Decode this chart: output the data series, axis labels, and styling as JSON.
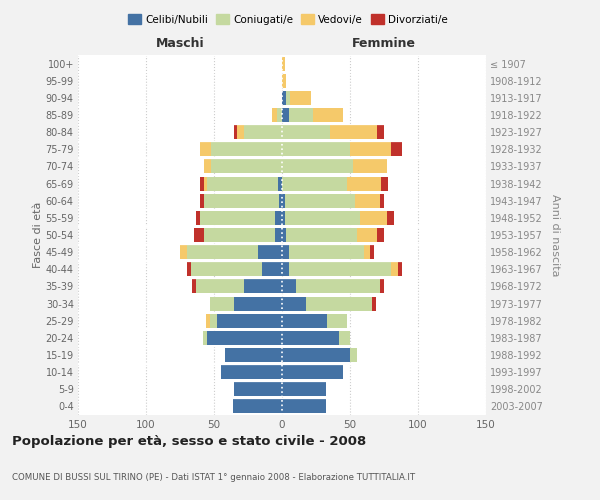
{
  "age_groups": [
    "0-4",
    "5-9",
    "10-14",
    "15-19",
    "20-24",
    "25-29",
    "30-34",
    "35-39",
    "40-44",
    "45-49",
    "50-54",
    "55-59",
    "60-64",
    "65-69",
    "70-74",
    "75-79",
    "80-84",
    "85-89",
    "90-94",
    "95-99",
    "100+"
  ],
  "birth_years": [
    "2003-2007",
    "1998-2002",
    "1993-1997",
    "1988-1992",
    "1983-1987",
    "1978-1982",
    "1973-1977",
    "1968-1972",
    "1963-1967",
    "1958-1962",
    "1953-1957",
    "1948-1952",
    "1943-1947",
    "1938-1942",
    "1933-1937",
    "1928-1932",
    "1923-1927",
    "1918-1922",
    "1913-1917",
    "1908-1912",
    "≤ 1907"
  ],
  "maschi": {
    "celibi": [
      36,
      35,
      45,
      42,
      55,
      48,
      35,
      28,
      15,
      18,
      5,
      5,
      2,
      3,
      0,
      0,
      0,
      0,
      0,
      0,
      0
    ],
    "coniugati": [
      0,
      0,
      0,
      0,
      3,
      5,
      18,
      35,
      52,
      52,
      52,
      55,
      55,
      52,
      52,
      52,
      28,
      4,
      0,
      0,
      0
    ],
    "vedovi": [
      0,
      0,
      0,
      0,
      0,
      3,
      0,
      0,
      0,
      5,
      0,
      0,
      0,
      2,
      5,
      8,
      5,
      3,
      0,
      0,
      0
    ],
    "divorziati": [
      0,
      0,
      0,
      0,
      0,
      0,
      0,
      3,
      3,
      0,
      8,
      3,
      3,
      3,
      0,
      0,
      2,
      0,
      0,
      0,
      0
    ]
  },
  "femmine": {
    "nubili": [
      32,
      32,
      45,
      50,
      42,
      33,
      18,
      10,
      5,
      5,
      3,
      2,
      2,
      0,
      0,
      0,
      0,
      5,
      3,
      0,
      0
    ],
    "coniugate": [
      0,
      0,
      0,
      5,
      8,
      15,
      48,
      62,
      75,
      55,
      52,
      55,
      52,
      48,
      52,
      50,
      35,
      18,
      3,
      0,
      0
    ],
    "vedove": [
      0,
      0,
      0,
      0,
      0,
      0,
      0,
      0,
      5,
      5,
      15,
      20,
      18,
      25,
      25,
      30,
      35,
      22,
      15,
      3,
      2
    ],
    "divorziate": [
      0,
      0,
      0,
      0,
      0,
      0,
      3,
      3,
      3,
      3,
      5,
      5,
      3,
      5,
      0,
      8,
      5,
      0,
      0,
      0,
      0
    ]
  },
  "colors": {
    "celibi": "#4472a4",
    "coniugati": "#c5d9a0",
    "vedovi": "#f5c96a",
    "divorziati": "#c0312b"
  },
  "xlim": 150,
  "title": "Popolazione per età, sesso e stato civile - 2008",
  "subtitle": "COMUNE DI BUSSI SUL TIRINO (PE) - Dati ISTAT 1° gennaio 2008 - Elaborazione TUTTITALIA.IT",
  "xlabel_left": "Maschi",
  "xlabel_right": "Femmine",
  "ylabel_left": "Fasce di età",
  "ylabel_right": "Anni di nascita",
  "bg_color": "#f2f2f2",
  "plot_bg": "#ffffff"
}
